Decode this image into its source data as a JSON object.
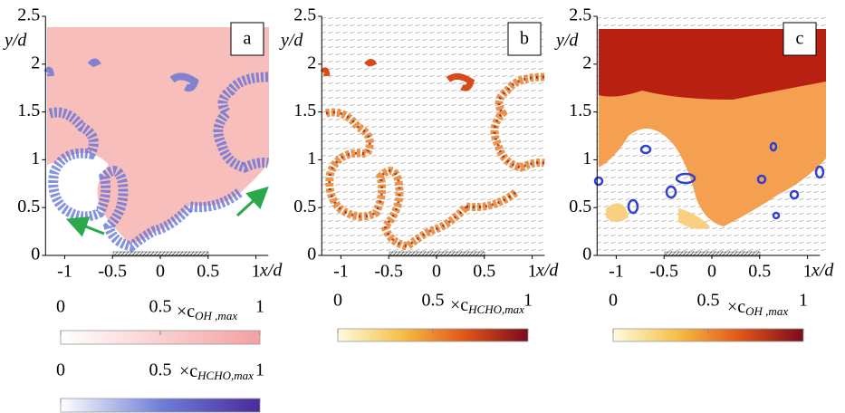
{
  "panels": [
    {
      "label": "a",
      "x_label": "x/d",
      "y_label": "y/d",
      "xlim": [
        -1.2,
        1.13
      ],
      "ylim": [
        0,
        2.5
      ],
      "xticks": [
        -1,
        -0.5,
        0,
        0.5,
        1
      ],
      "yticks": [
        0,
        0.5,
        1,
        1.5,
        2,
        2.5
      ]
    },
    {
      "label": "b",
      "x_label": "x/d",
      "y_label": "y/d",
      "xlim": [
        -1.2,
        1.13
      ],
      "ylim": [
        0,
        2.5
      ],
      "xticks": [
        -1,
        -0.5,
        0,
        0.5,
        1
      ],
      "yticks": [
        0,
        0.5,
        1,
        1.5,
        2,
        2.5
      ]
    },
    {
      "label": "c",
      "x_label": "x/d",
      "y_label": "y/d",
      "xlim": [
        -1.2,
        1.13
      ],
      "ylim": [
        0,
        2.5
      ],
      "xticks": [
        -1,
        -0.5,
        0,
        0.5,
        1
      ],
      "yticks": [
        0,
        0.5,
        1,
        1.5,
        2,
        2.5
      ]
    }
  ],
  "colorbars": [
    {
      "ticks": [
        0,
        0.5,
        1
      ],
      "symbol": "×c",
      "subscript": "OH ,max",
      "colors": [
        "#ffffff",
        "#f4a0a0"
      ]
    },
    {
      "ticks": [
        0,
        0.5,
        1
      ],
      "symbol": "×c",
      "subscript": "HCHO,max",
      "colors": [
        "#ffffff",
        "#6f7fd8",
        "#4a2a9a"
      ]
    },
    {
      "ticks": [
        0,
        0.5,
        1
      ],
      "symbol": "×c",
      "subscript": "HCHO,max",
      "colors": [
        "#fffbe0",
        "#f5c04a",
        "#e0561a",
        "#7a0a1a"
      ]
    },
    {
      "ticks": [
        0,
        0.5,
        1
      ],
      "symbol": "×c",
      "subscript": "OH ,max",
      "colors": [
        "#fffbe0",
        "#f5c04a",
        "#e0561a",
        "#7a0a1a"
      ]
    }
  ]
}
